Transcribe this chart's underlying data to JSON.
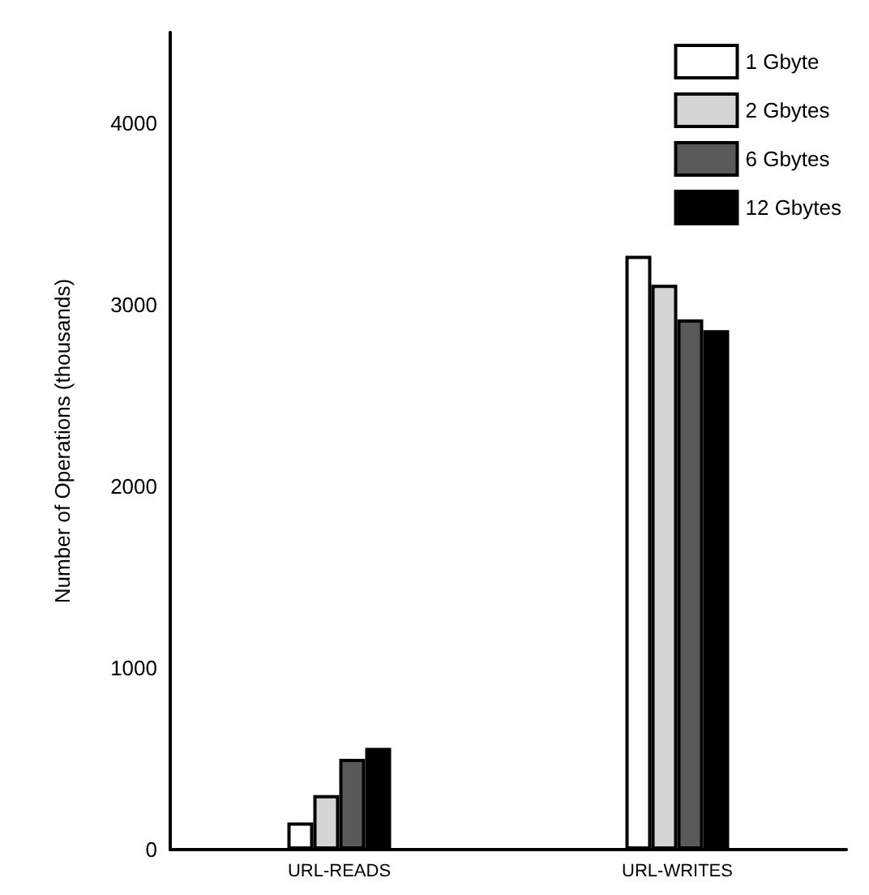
{
  "chart_data": {
    "type": "bar",
    "ylabel": "Number of Operations (thousands)",
    "categories": [
      "URL-READS",
      "URL-WRITES"
    ],
    "ylim": [
      0,
      4500
    ],
    "yticks": [
      0,
      1000,
      2000,
      3000,
      4000
    ],
    "grid": false,
    "legend": "top right",
    "series": [
      {
        "name": "1 Gbyte",
        "color": "#ffffff",
        "values": [
          150,
          3270
        ]
      },
      {
        "name": "2 Gbytes",
        "color": "#d4d4d4",
        "values": [
          300,
          3110
        ]
      },
      {
        "name": "6 Gbytes",
        "color": "#595959",
        "values": [
          500,
          2920
        ]
      },
      {
        "name": "12 Gbytes",
        "color": "#000000",
        "values": [
          560,
          2860
        ]
      }
    ]
  }
}
